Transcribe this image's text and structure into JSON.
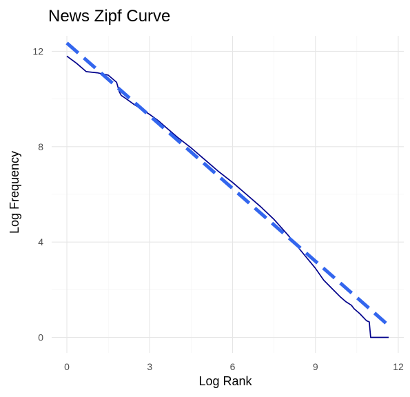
{
  "chart_data": {
    "type": "line",
    "title": "News Zipf Curve",
    "xlabel": "Log Rank",
    "ylabel": "Log Frequency",
    "xlim": [
      -0.55,
      12.2
    ],
    "ylim": [
      -0.65,
      12.65
    ],
    "x_ticks": [
      0,
      3,
      6,
      9,
      12
    ],
    "x_tick_labels": [
      "0",
      "3",
      "6",
      "9",
      "12"
    ],
    "y_ticks": [
      0,
      4,
      8,
      12
    ],
    "y_tick_labels": [
      "0",
      "4",
      "8",
      "12"
    ],
    "grid": true,
    "legend": "none",
    "series": [
      {
        "kind": "observed",
        "color": "#00008B",
        "style": "solid",
        "x": [
          0,
          0.35,
          0.7,
          1.1,
          1.5,
          1.8,
          1.9,
          1.97,
          2.1,
          2.4,
          2.6,
          2.8,
          3.0,
          3.3,
          3.6,
          4.0,
          4.5,
          5.0,
          5.5,
          6.0,
          6.5,
          7.0,
          7.5,
          8.0,
          8.5,
          9.0,
          9.3,
          9.6,
          9.9,
          10.1,
          10.3,
          10.4,
          10.6,
          10.85,
          10.95,
          11.0,
          11.3,
          11.65
        ],
        "y": [
          11.8,
          11.5,
          11.15,
          11.1,
          11.0,
          10.7,
          10.3,
          10.15,
          10.05,
          9.8,
          9.65,
          9.5,
          9.35,
          9.1,
          8.8,
          8.4,
          7.95,
          7.45,
          6.95,
          6.5,
          6.0,
          5.5,
          4.95,
          4.3,
          3.6,
          2.9,
          2.4,
          2.05,
          1.7,
          1.5,
          1.35,
          1.2,
          1.0,
          0.7,
          0.65,
          0.0,
          0.0,
          0.0
        ]
      },
      {
        "kind": "fit",
        "color": "#3366EE",
        "style": "dashed",
        "x": [
          0,
          11.65
        ],
        "y": [
          12.35,
          0.5
        ]
      }
    ]
  }
}
